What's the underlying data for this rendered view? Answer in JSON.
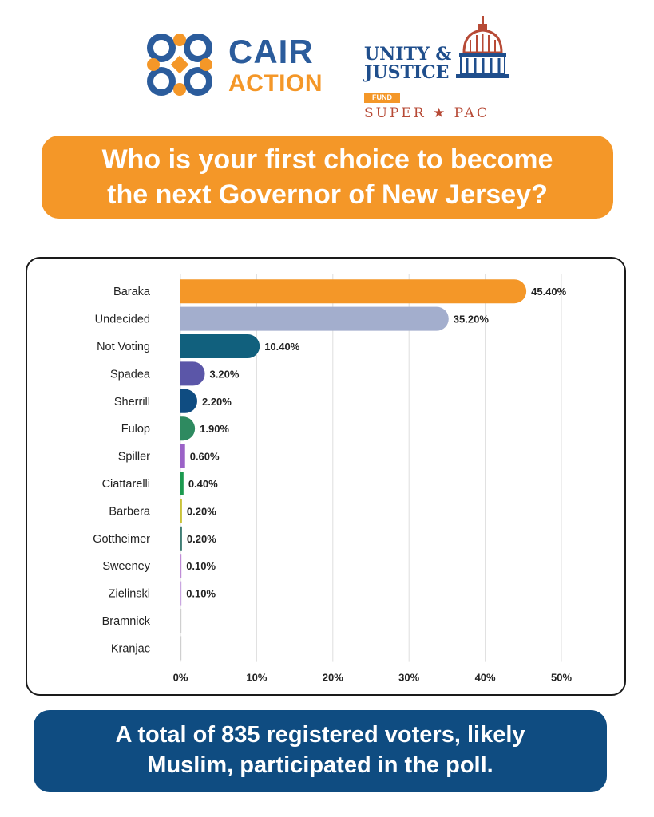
{
  "logos": {
    "cair": {
      "line1": "CAIR",
      "line2": "ACTION"
    },
    "unity": {
      "line1": "UNITY &",
      "line2": "JUSTICE",
      "fund": "FUND",
      "pac": "SUPER ★ PAC"
    }
  },
  "title": {
    "line1": "Who is your first choice to become",
    "line2": "the next Governor of New Jersey?"
  },
  "footer": {
    "line1": "A total of 835 registered voters, likely",
    "line2": "Muslim, participated in the poll."
  },
  "colors": {
    "orange": "#f49728",
    "navy": "#0f4c81",
    "cair_blue": "#2b5c9c",
    "pac_red": "#b74a36"
  },
  "chart_data": {
    "type": "bar",
    "orientation": "horizontal",
    "title": "Who is your first choice to become the next Governor of New Jersey?",
    "categories": [
      "Baraka",
      "Undecided",
      "Not Voting",
      "Spadea",
      "Sherrill",
      "Fulop",
      "Spiller",
      "Ciattarelli",
      "Barbera",
      "Gottheimer",
      "Sweeney",
      "Zielinski",
      "Bramnick",
      "Kranjac"
    ],
    "values": [
      45.4,
      35.2,
      10.4,
      3.2,
      2.2,
      1.9,
      0.6,
      0.4,
      0.2,
      0.2,
      0.1,
      0.1,
      0,
      0
    ],
    "value_labels": [
      "45.40%",
      "35.20%",
      "10.40%",
      "3.20%",
      "2.20%",
      "1.90%",
      "0.60%",
      "0.40%",
      "0.20%",
      "0.20%",
      "0.10%",
      "0.10%",
      "",
      ""
    ],
    "colors": [
      "#f49728",
      "#a3aecd",
      "#11607d",
      "#5b56a8",
      "#0f4c81",
      "#2e8a60",
      "#9b62c7",
      "#1c9a4f",
      "#c9c23a",
      "#3f7d74",
      "#bf8cd6",
      "#c9a6e0",
      "#cfcfcf",
      "#cfcfcf"
    ],
    "xlim": [
      0,
      50
    ],
    "xticks": [
      0,
      10,
      20,
      30,
      40,
      50
    ],
    "xtick_labels": [
      "0%",
      "10%",
      "20%",
      "30%",
      "40%",
      "50%"
    ],
    "grid": true,
    "legend": false,
    "xlabel": "",
    "ylabel": ""
  }
}
